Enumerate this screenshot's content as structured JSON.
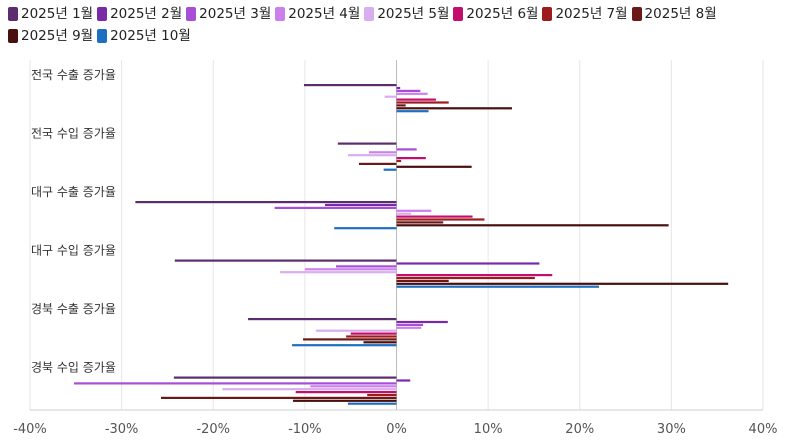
{
  "chart_data": {
    "type": "bar",
    "orientation": "horizontal",
    "title": "",
    "xlabel": "",
    "ylabel": "",
    "xlim": [
      -40,
      40
    ],
    "ticks": [
      -40,
      -30,
      -20,
      -10,
      0,
      10,
      20,
      30,
      40
    ],
    "tick_labels": [
      "-40%",
      "-30%",
      "-20%",
      "-10%",
      "0%",
      "10%",
      "20%",
      "30%",
      "40%"
    ],
    "grid": true,
    "legend_position": "top",
    "categories": [
      "전국 수출 증가율",
      "전국 수입 증가율",
      "대구 수출 증가율",
      "대구 수입 증가율",
      "경북 수출 증가율",
      "경북 수입 증가율"
    ],
    "series": [
      {
        "name": "2025년 1월",
        "color": "#5c2d6e",
        "values": [
          -10.1,
          -6.4,
          -28.5,
          -24.2,
          -16.2,
          -24.3
        ]
      },
      {
        "name": "2025년 2월",
        "color": "#7a2aa8",
        "values": [
          0.4,
          0.0,
          -7.8,
          15.6,
          5.6,
          1.5
        ]
      },
      {
        "name": "2025년 3월",
        "color": "#a84ed6",
        "values": [
          2.6,
          2.2,
          -13.3,
          -6.6,
          2.9,
          -35.2
        ]
      },
      {
        "name": "2025년 4월",
        "color": "#cc80ee",
        "values": [
          3.4,
          -3.0,
          3.8,
          -10.0,
          2.7,
          -9.4
        ]
      },
      {
        "name": "2025년 5월",
        "color": "#d9aeee",
        "values": [
          -1.3,
          -5.3,
          1.6,
          -12.7,
          -8.8,
          -19.0
        ]
      },
      {
        "name": "2025년 6월",
        "color": "#c40e6e",
        "values": [
          4.3,
          3.2,
          8.3,
          17.0,
          -5.0,
          -11.0
        ]
      },
      {
        "name": "2025년 7월",
        "color": "#9c1c1c",
        "values": [
          5.7,
          0.5,
          9.6,
          15.1,
          -5.5,
          -3.2
        ]
      },
      {
        "name": "2025년 8월",
        "color": "#6b1818",
        "values": [
          1.0,
          -4.1,
          5.1,
          5.7,
          -10.2,
          -25.7
        ]
      },
      {
        "name": "2025년 9월",
        "color": "#4a1010",
        "values": [
          12.6,
          8.2,
          29.7,
          36.2,
          -3.6,
          -11.3
        ]
      },
      {
        "name": "2025년 10월",
        "color": "#1f6fc0",
        "values": [
          3.5,
          -1.4,
          -6.8,
          22.1,
          -11.4,
          -5.3
        ]
      }
    ]
  }
}
